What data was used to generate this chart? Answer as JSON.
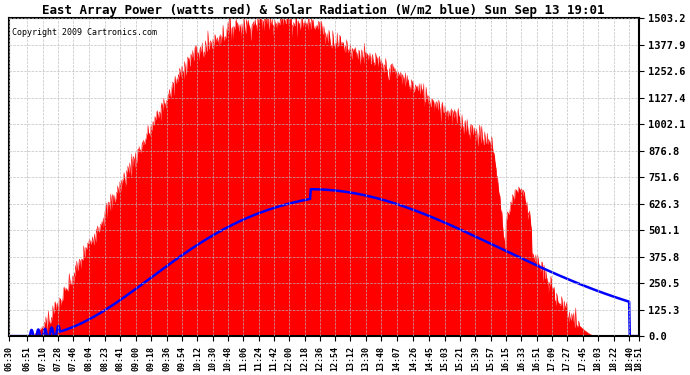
{
  "title": "East Array Power (watts red) & Solar Radiation (W/m2 blue) Sun Sep 13 19:01",
  "copyright": "Copyright 2009 Cartronics.com",
  "background_color": "#ffffff",
  "plot_bg_color": "#ffffff",
  "grid_color": "#bbbbbb",
  "red_color": "#ff0000",
  "blue_color": "#0000ff",
  "yticks": [
    0.0,
    125.3,
    250.5,
    375.8,
    501.1,
    626.3,
    751.6,
    876.8,
    1002.1,
    1127.4,
    1252.6,
    1377.9,
    1503.2
  ],
  "ymax": 1503.2,
  "time_start_minutes": 390,
  "time_end_minutes": 1131,
  "tick_step_minutes": 19,
  "xtick_labels": [
    "06:30",
    "06:51",
    "07:10",
    "07:28",
    "07:46",
    "08:04",
    "08:23",
    "08:41",
    "09:00",
    "09:18",
    "09:36",
    "09:54",
    "10:12",
    "10:30",
    "10:48",
    "11:06",
    "11:24",
    "11:42",
    "12:00",
    "12:18",
    "12:36",
    "12:54",
    "13:12",
    "13:30",
    "13:48",
    "14:07",
    "14:26",
    "14:45",
    "15:03",
    "15:21",
    "15:39",
    "15:57",
    "16:15",
    "16:33",
    "16:51",
    "17:09",
    "17:27",
    "17:45",
    "18:03",
    "18:22",
    "18:40",
    "18:51"
  ],
  "xtick_minutes": [
    390,
    411,
    430,
    448,
    466,
    484,
    503,
    521,
    540,
    558,
    576,
    594,
    612,
    630,
    648,
    666,
    684,
    702,
    720,
    738,
    756,
    774,
    792,
    810,
    828,
    847,
    866,
    885,
    903,
    921,
    939,
    957,
    975,
    993,
    1011,
    1029,
    1047,
    1065,
    1083,
    1102,
    1120,
    1131
  ]
}
